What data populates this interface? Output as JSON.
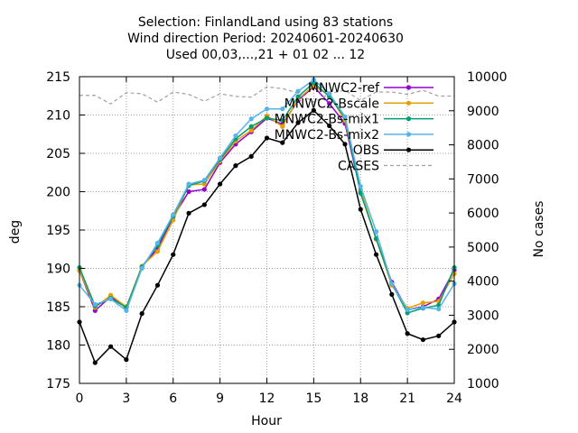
{
  "title_lines": [
    "Selection: FinlandLand using     83 stations",
    "Wind direction   Period: 20240601-20240630",
    "Used 00,03,...,21 + 01 02 ... 12"
  ],
  "chart_data": {
    "type": "line",
    "xlabel": "Hour",
    "ylabel": "deg",
    "y2label": "No cases",
    "xlim": [
      0,
      24
    ],
    "ylim": [
      175,
      215
    ],
    "y2lim": [
      1000,
      10000
    ],
    "xticks": [
      "0",
      "3",
      "6",
      "9",
      "12",
      "15",
      "18",
      "21",
      "24"
    ],
    "yticks": [
      "175",
      "180",
      "185",
      "190",
      "195",
      "200",
      "205",
      "210",
      "215"
    ],
    "y2ticks": [
      "1000",
      "2000",
      "3000",
      "4000",
      "5000",
      "6000",
      "7000",
      "8000",
      "9000",
      "10000"
    ],
    "grid": true,
    "legend_position": "top-right",
    "x": [
      0,
      1,
      2,
      3,
      4,
      5,
      6,
      7,
      8,
      9,
      10,
      11,
      12,
      13,
      14,
      15,
      16,
      17,
      18,
      19,
      20,
      21,
      22,
      23,
      24
    ],
    "series": [
      {
        "name": "MNWC2-ref",
        "color": "#9400d3",
        "marker": "circle",
        "axis": "y",
        "values": [
          189.7,
          184.5,
          186.3,
          184.9,
          190.2,
          192.6,
          196.7,
          200.0,
          200.3,
          203.8,
          206.2,
          207.8,
          209.6,
          208.8,
          211.9,
          213.7,
          211.5,
          208.9,
          200.0,
          193.8,
          188.2,
          184.6,
          185.0,
          186.0,
          189.8
        ]
      },
      {
        "name": "MNWC2-Bscale",
        "color": "#e69f00",
        "marker": "circle",
        "axis": "y",
        "values": [
          189.7,
          184.9,
          186.5,
          185.0,
          190.3,
          192.2,
          196.3,
          200.9,
          201.0,
          204.0,
          206.6,
          208.0,
          209.9,
          208.5,
          212.1,
          213.8,
          212.6,
          209.3,
          200.3,
          193.8,
          187.8,
          184.8,
          185.5,
          185.7,
          189.3
        ]
      },
      {
        "name": "MNWC2-Bs-mix1",
        "color": "#009e73",
        "marker": "circle",
        "axis": "y",
        "values": [
          190.1,
          185.1,
          186.1,
          184.9,
          190.2,
          193.0,
          196.8,
          200.8,
          201.4,
          204.2,
          206.9,
          208.5,
          209.6,
          209.3,
          212.4,
          214.2,
          212.4,
          209.7,
          199.8,
          193.9,
          188.0,
          184.2,
          184.8,
          185.2,
          190.1
        ]
      },
      {
        "name": "MNWC2-Bs-mix2",
        "color": "#56b4e9",
        "marker": "circle",
        "axis": "y",
        "values": [
          187.8,
          185.3,
          186.0,
          184.5,
          190.0,
          193.3,
          197.0,
          201.0,
          201.5,
          204.4,
          207.3,
          209.5,
          210.8,
          210.8,
          213.1,
          214.6,
          212.8,
          209.8,
          200.7,
          194.8,
          188.0,
          184.6,
          184.9,
          184.7,
          188.0
        ]
      },
      {
        "name": "OBS",
        "color": "#000000",
        "marker": "circle",
        "axis": "y",
        "values": [
          183.0,
          177.7,
          179.8,
          178.1,
          184.1,
          187.8,
          191.8,
          197.2,
          198.3,
          201.0,
          203.4,
          204.6,
          207.0,
          206.4,
          209.0,
          210.6,
          208.6,
          206.2,
          197.7,
          191.8,
          186.6,
          181.5,
          180.7,
          181.2,
          183.0
        ]
      },
      {
        "name": "CASES",
        "color": "#a0a0a0",
        "dash": true,
        "marker": "none",
        "axis": "y2",
        "values": [
          9450,
          9450,
          9200,
          9530,
          9500,
          9250,
          9550,
          9480,
          9280,
          9500,
          9420,
          9400,
          9700,
          9650,
          9520,
          9250,
          9500,
          9600,
          9300,
          9550,
          9550,
          9480,
          9600,
          9430,
          9430
        ]
      }
    ]
  }
}
